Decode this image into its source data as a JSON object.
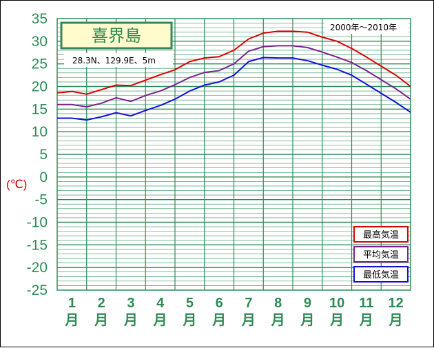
{
  "chart_data": {
    "type": "line",
    "title": "喜界島",
    "location": "28.3N、129.9E、5m",
    "period": "2000年～2010年",
    "ylabel": "(℃)",
    "ylim": [
      -25,
      35
    ],
    "yticks": [
      35,
      30,
      25,
      20,
      15,
      10,
      5,
      0,
      -5,
      -10,
      -15,
      -20,
      -25
    ],
    "categories": [
      "1",
      "2",
      "3",
      "4",
      "5",
      "6",
      "7",
      "8",
      "9",
      "10",
      "11",
      "12"
    ],
    "month_suffix": "月",
    "x": [
      0.0,
      0.5,
      1.0,
      1.5,
      2.0,
      2.5,
      3.0,
      3.5,
      4.0,
      4.5,
      5.0,
      5.5,
      6.0,
      6.5,
      7.0,
      7.5,
      8.0,
      8.5,
      9.0,
      9.5,
      10.0,
      10.5,
      11.0,
      11.5,
      12.0
    ],
    "series": [
      {
        "name": "最高気温",
        "color": "#dd0000",
        "values": [
          18.6,
          18.9,
          18.3,
          19.3,
          20.3,
          20.2,
          21.4,
          22.6,
          23.7,
          25.5,
          26.3,
          26.6,
          28.0,
          30.5,
          31.8,
          32.2,
          32.2,
          32.0,
          30.9,
          30.0,
          28.4,
          26.5,
          24.5,
          22.5,
          20.0
        ]
      },
      {
        "name": "平均気温",
        "color": "#7f1f8f",
        "values": [
          16.0,
          16.0,
          15.5,
          16.3,
          17.5,
          16.7,
          18.0,
          19.0,
          20.4,
          22.0,
          23.1,
          23.5,
          25.0,
          27.8,
          28.8,
          29.0,
          29.0,
          28.6,
          27.6,
          26.5,
          25.3,
          23.5,
          21.5,
          19.5,
          17.2
        ]
      },
      {
        "name": "最低気温",
        "color": "#1010dd",
        "values": [
          13.0,
          13.0,
          12.6,
          13.3,
          14.2,
          13.5,
          14.7,
          15.8,
          17.2,
          19.0,
          20.3,
          21.0,
          22.5,
          25.5,
          26.4,
          26.3,
          26.3,
          25.7,
          24.7,
          23.8,
          22.5,
          20.5,
          18.5,
          16.5,
          14.3
        ]
      }
    ],
    "grid": true,
    "legend": "bottom-right"
  }
}
